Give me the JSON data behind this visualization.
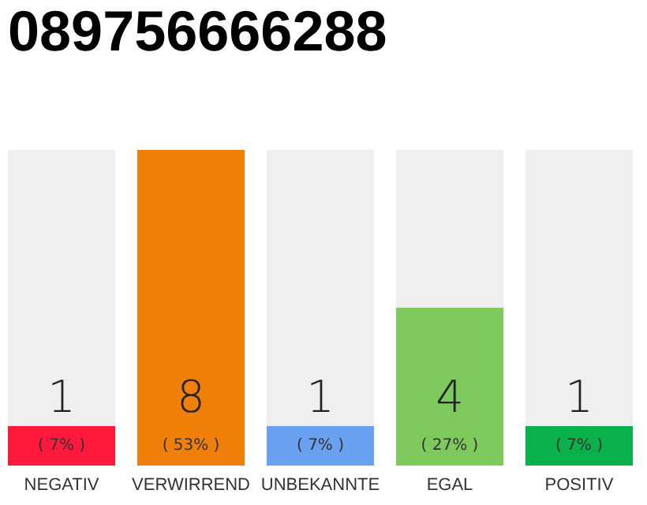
{
  "chart_data": {
    "type": "bar",
    "title": "089756666288",
    "categories": [
      "NEGATIV",
      "VERWIRREND",
      "UNBEKANNTE",
      "EGAL",
      "POSITIV"
    ],
    "values": [
      1,
      8,
      1,
      4,
      1
    ],
    "colors": [
      "#ff1a3c",
      "#f07f0a",
      "#6aa0f0",
      "#7ec95c",
      "#0ab14a"
    ],
    "data_labels": true,
    "annotations": [
      "( 7% )",
      "( 53% )",
      "( 7% )",
      "( 27% )",
      "( 7% )"
    ]
  }
}
